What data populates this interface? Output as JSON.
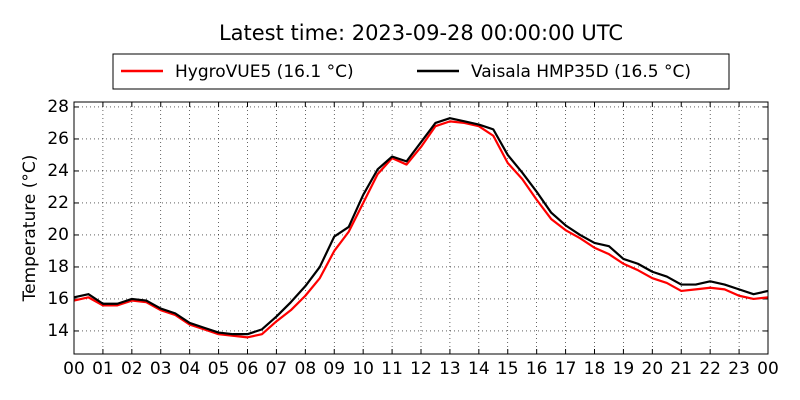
{
  "chart_data": {
    "type": "line",
    "title": "Latest time: 2023-09-28 00:00:00 UTC",
    "y_label": "Temperature (°C)",
    "x": [
      0,
      0.5,
      1,
      1.5,
      2,
      2.5,
      3,
      3.5,
      4,
      4.5,
      5,
      5.5,
      6,
      6.5,
      7,
      7.5,
      8,
      8.5,
      9,
      9.5,
      10,
      10.5,
      11,
      11.5,
      12,
      12.5,
      13,
      13.5,
      14,
      14.5,
      15,
      15.5,
      16,
      16.5,
      17,
      17.5,
      18,
      18.5,
      19,
      19.5,
      20,
      20.5,
      21,
      21.5,
      22,
      22.5,
      23,
      23.5,
      24
    ],
    "series": [
      {
        "name": "HygroVUE5 (16.1 °C)",
        "color": "#ff0000",
        "values": [
          15.9,
          16.1,
          15.6,
          15.6,
          15.9,
          15.8,
          15.3,
          15.0,
          14.4,
          14.1,
          13.8,
          13.7,
          13.6,
          13.8,
          14.6,
          15.3,
          16.2,
          17.3,
          19.0,
          20.2,
          22.0,
          23.8,
          24.8,
          24.4,
          25.5,
          26.8,
          27.1,
          27.0,
          26.8,
          26.2,
          24.5,
          23.5,
          22.2,
          21.0,
          20.3,
          19.8,
          19.2,
          18.8,
          18.2,
          17.8,
          17.3,
          17.0,
          16.5,
          16.6,
          16.7,
          16.6,
          16.2,
          16.0,
          16.1
        ]
      },
      {
        "name": "Vaisala HMP35D (16.5 °C)",
        "color": "#000000",
        "values": [
          16.1,
          16.3,
          15.7,
          15.7,
          16.0,
          15.9,
          15.4,
          15.1,
          14.5,
          14.2,
          13.9,
          13.8,
          13.8,
          14.1,
          14.9,
          15.8,
          16.8,
          18.0,
          19.9,
          20.5,
          22.5,
          24.1,
          24.9,
          24.6,
          25.8,
          27.0,
          27.3,
          27.1,
          26.9,
          26.6,
          25.0,
          23.9,
          22.7,
          21.4,
          20.6,
          20.0,
          19.5,
          19.3,
          18.5,
          18.2,
          17.7,
          17.4,
          16.9,
          16.9,
          17.1,
          16.9,
          16.6,
          16.3,
          16.5
        ]
      }
    ],
    "xlim": [
      0,
      24
    ],
    "xticks": [
      {
        "value": 0,
        "label": "00"
      },
      {
        "value": 1,
        "label": "01"
      },
      {
        "value": 2,
        "label": "02"
      },
      {
        "value": 3,
        "label": "03"
      },
      {
        "value": 4,
        "label": "04"
      },
      {
        "value": 5,
        "label": "05"
      },
      {
        "value": 6,
        "label": "06"
      },
      {
        "value": 7,
        "label": "07"
      },
      {
        "value": 8,
        "label": "08"
      },
      {
        "value": 9,
        "label": "09"
      },
      {
        "value": 10,
        "label": "10"
      },
      {
        "value": 11,
        "label": "11"
      },
      {
        "value": 12,
        "label": "12"
      },
      {
        "value": 13,
        "label": "13"
      },
      {
        "value": 14,
        "label": "14"
      },
      {
        "value": 15,
        "label": "15"
      },
      {
        "value": 16,
        "label": "16"
      },
      {
        "value": 17,
        "label": "17"
      },
      {
        "value": 18,
        "label": "18"
      },
      {
        "value": 19,
        "label": "19"
      },
      {
        "value": 20,
        "label": "20"
      },
      {
        "value": 21,
        "label": "21"
      },
      {
        "value": 22,
        "label": "22"
      },
      {
        "value": 23,
        "label": "23"
      },
      {
        "value": 24,
        "label": "00"
      }
    ],
    "ylim": [
      12.56,
      28.31
    ],
    "yticks": [
      14,
      16,
      18,
      20,
      22,
      24,
      26,
      28
    ],
    "grid": true
  }
}
